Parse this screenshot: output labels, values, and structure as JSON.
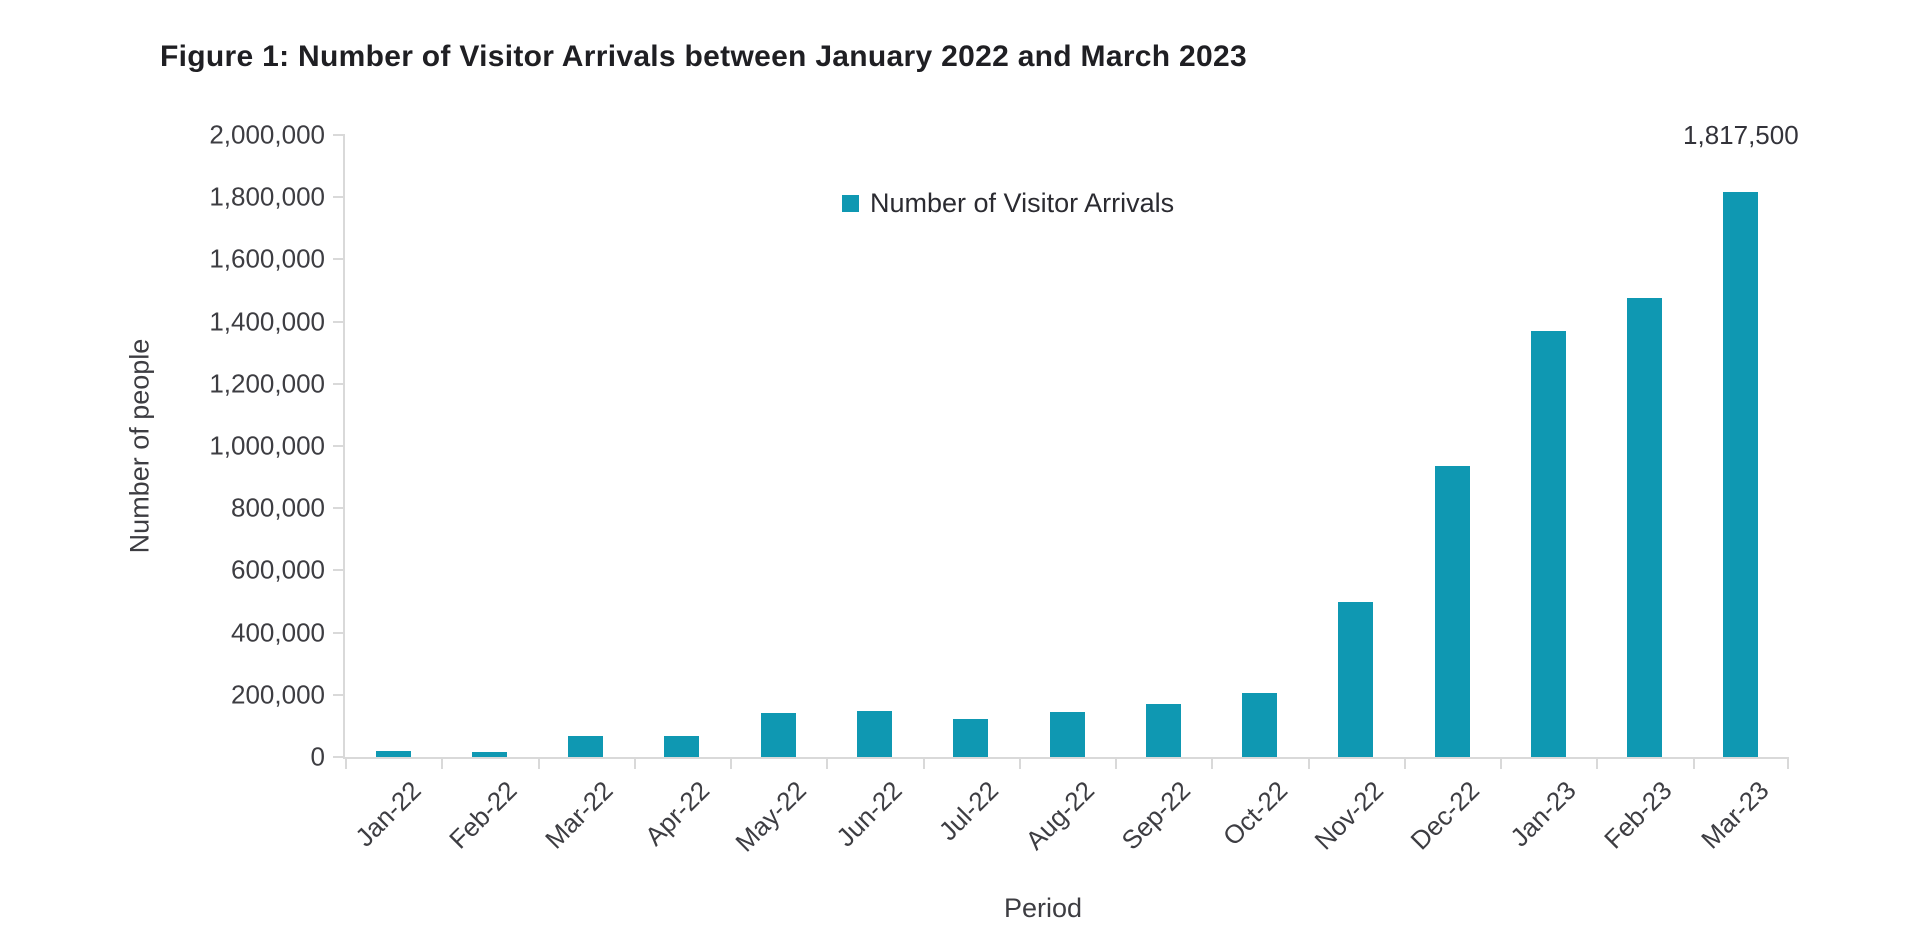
{
  "title": "Figure 1: Number of Visitor Arrivals between January 2022 and March 2023",
  "legend": {
    "label": "Number of Visitor Arrivals"
  },
  "y_axis": {
    "title": "Number of people"
  },
  "x_axis": {
    "title": "Period"
  },
  "colors": {
    "bar": "#0f98b2",
    "axis_line": "#d9d9d9",
    "axis_text": "#3d3d42",
    "title_text": "#1f1f23"
  },
  "chart_data": {
    "type": "bar",
    "title": "Figure 1: Number of Visitor Arrivals between January 2022 and March 2023",
    "xlabel": "Period",
    "ylabel": "Number of people",
    "legend_entries": [
      "Number of Visitor Arrivals"
    ],
    "legend_position": "top-center",
    "grid": false,
    "categories": [
      "Jan-22",
      "Feb-22",
      "Mar-22",
      "Apr-22",
      "May-22",
      "Jun-22",
      "Jul-22",
      "Aug-22",
      "Sep-22",
      "Oct-22",
      "Nov-22",
      "Dec-22",
      "Jan-23",
      "Feb-23",
      "Mar-23"
    ],
    "values": [
      18000,
      17000,
      66000,
      66000,
      140000,
      147000,
      121000,
      145000,
      170000,
      206000,
      500000,
      935000,
      1370000,
      1475000,
      1817500
    ],
    "ylim": [
      0,
      2000000
    ],
    "ytick_interval": 200000,
    "ytick_labels": [
      "0",
      "200,000",
      "400,000",
      "600,000",
      "800,000",
      "1,000,000",
      "1,200,000",
      "1,400,000",
      "1,600,000",
      "1,800,000",
      "2,000,000"
    ],
    "data_label": {
      "category": "Mar-23",
      "category_index": 14,
      "text": "1,817,500"
    },
    "bar_color": "#0f98b2"
  }
}
